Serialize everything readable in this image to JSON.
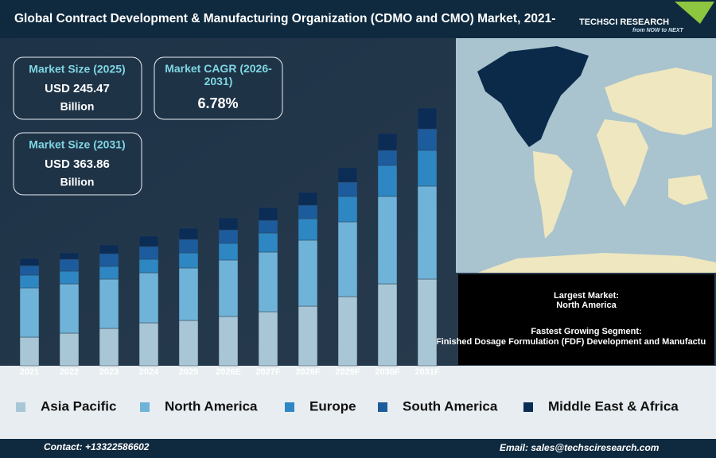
{
  "header": {
    "title": "Global Contract Development & Manufacturing Organization (CDMO and CMO) Market, 2021-",
    "logo": "TECHSCI RESEARCH",
    "tagline": "from NOW to NEXT"
  },
  "stats": [
    {
      "label": "Market Size (2025)",
      "value": "USD 245.47",
      "unit": "Billion"
    },
    {
      "label": "Market CAGR (2026-2031)",
      "value": "6.78%"
    },
    {
      "label": "Market Size (2031)",
      "value": "USD 363.86",
      "unit": "Billion"
    }
  ],
  "info": {
    "largest_label": "Largest Market:",
    "largest_value": "North America",
    "fastest_label": "Fastest Growing Segment:",
    "fastest_value": "Finished Dosage Formulation (FDF) Development and Manufactu"
  },
  "footer": {
    "contact": "Contact: +13322586602",
    "email": "Email: sales@techsciresearch.com"
  },
  "chart_data": {
    "type": "stacked_bar",
    "categories": [
      "2021",
      "2022",
      "2023",
      "2024",
      "2025",
      "2026E",
      "2027F",
      "2028F",
      "2029F",
      "2030F",
      "2031F"
    ],
    "series": [
      {
        "name": "Asia Pacific",
        "color": "#a9c6d6",
        "values": [
          36,
          41,
          47,
          54,
          57,
          62,
          68,
          75,
          87,
          103,
          109
        ]
      },
      {
        "name": "North America",
        "color": "#6fb3d8",
        "values": [
          62,
          62,
          62,
          63,
          66,
          71,
          75,
          83,
          94,
          110,
          117
        ]
      },
      {
        "name": "Europe",
        "color": "#2e87c2",
        "values": [
          16,
          16,
          16,
          17,
          19,
          21,
          24,
          27,
          32,
          39,
          45
        ]
      },
      {
        "name": "South America",
        "color": "#1d5c9c",
        "values": [
          12,
          15,
          16,
          16,
          17,
          17,
          16,
          17,
          18,
          19,
          27
        ]
      },
      {
        "name": "Middle East & Africa",
        "color": "#0b2c55",
        "values": [
          9,
          8,
          11,
          13,
          14,
          15,
          16,
          16,
          18,
          21,
          26
        ]
      }
    ],
    "ylim": [
      0,
      340
    ]
  }
}
